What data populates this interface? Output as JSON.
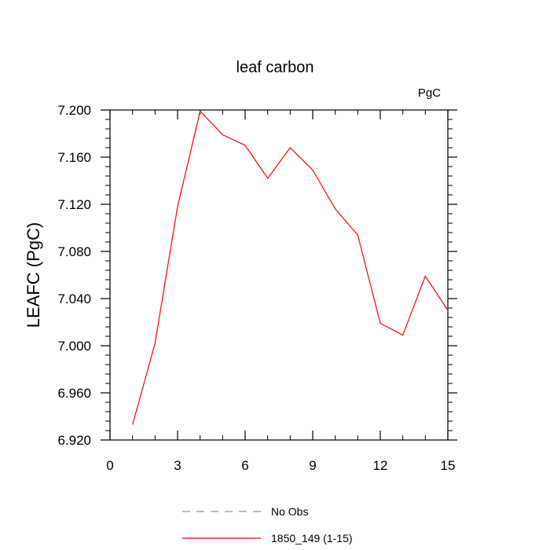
{
  "chart_data": {
    "type": "line",
    "title": "leaf carbon",
    "units_label": "PgC",
    "ylabel": "LEAFC  (PgC)",
    "xlabel": "",
    "xlim": [
      0,
      15
    ],
    "ylim": [
      6.92,
      7.2
    ],
    "x_ticks": [
      0,
      3,
      6,
      9,
      12,
      15
    ],
    "x_tick_labels": [
      "0",
      "3",
      "6",
      "9",
      "12",
      "15"
    ],
    "y_ticks": [
      6.92,
      6.96,
      7.0,
      7.04,
      7.08,
      7.12,
      7.16,
      7.2
    ],
    "y_tick_labels": [
      "6.920",
      "6.960",
      "7.000",
      "7.040",
      "7.080",
      "7.120",
      "7.160",
      "7.200"
    ],
    "grid": false,
    "legend_position": "bottom",
    "series": [
      {
        "name": "No Obs",
        "color": "#8a8ae6",
        "dash": "dashed",
        "x": [],
        "y": []
      },
      {
        "name": "1850_149 (1-15)",
        "color": "#ff0000",
        "dash": "solid",
        "x": [
          1,
          2,
          3,
          4,
          5,
          6,
          7,
          8,
          9,
          10,
          11,
          12,
          13,
          14,
          15
        ],
        "y": [
          6.933,
          7.002,
          7.118,
          7.199,
          7.179,
          7.17,
          7.142,
          7.168,
          7.149,
          7.116,
          7.094,
          7.019,
          7.009,
          7.059,
          7.03
        ]
      }
    ]
  }
}
